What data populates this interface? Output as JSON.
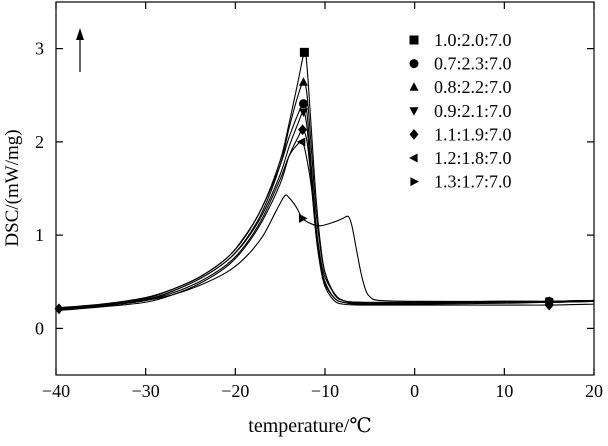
{
  "chart_data": {
    "type": "line",
    "xlabel": "temperature/℃",
    "ylabel": "DSC/(mW/mg)",
    "xlim": [
      -40,
      20
    ],
    "ylim": [
      -0.5,
      3.5
    ],
    "x_ticks": [
      -40,
      -30,
      -20,
      -10,
      0,
      10,
      20
    ],
    "x_tick_labels": [
      "−40",
      "−30",
      "−20",
      "−10",
      "0",
      "10",
      "20"
    ],
    "y_ticks": [
      0,
      1,
      2,
      3
    ],
    "y_tick_labels": [
      "0",
      "1",
      "2",
      "3"
    ],
    "grid": false,
    "legend_position": "top-right",
    "arrow": "exo-up",
    "series": [
      {
        "name": "1.0:2.0:7.0",
        "marker": "square",
        "points": [
          [
            -40,
            0.22
          ],
          [
            -35,
            0.25
          ],
          [
            -30,
            0.32
          ],
          [
            -27,
            0.42
          ],
          [
            -24,
            0.55
          ],
          [
            -21,
            0.75
          ],
          [
            -19,
            0.98
          ],
          [
            -17,
            1.3
          ],
          [
            -15,
            1.8
          ],
          [
            -14,
            2.2
          ],
          [
            -13,
            2.65
          ],
          [
            -12.3,
            2.96
          ],
          [
            -12.0,
            2.8
          ],
          [
            -11.5,
            2.1
          ],
          [
            -11,
            1.4
          ],
          [
            -10.5,
            0.9
          ],
          [
            -10,
            0.6
          ],
          [
            -9,
            0.38
          ],
          [
            -8,
            0.3
          ],
          [
            -6,
            0.27
          ],
          [
            0,
            0.27
          ],
          [
            10,
            0.28
          ],
          [
            15,
            0.28
          ],
          [
            20,
            0.29
          ]
        ]
      },
      {
        "name": "0.7:2.3:7.0",
        "marker": "circle",
        "points": [
          [
            -40,
            0.22
          ],
          [
            -35,
            0.26
          ],
          [
            -30,
            0.33
          ],
          [
            -27,
            0.42
          ],
          [
            -24,
            0.55
          ],
          [
            -21,
            0.75
          ],
          [
            -19,
            0.97
          ],
          [
            -17,
            1.3
          ],
          [
            -15,
            1.75
          ],
          [
            -14,
            2.05
          ],
          [
            -13,
            2.3
          ],
          [
            -12.4,
            2.41
          ],
          [
            -12.0,
            2.3
          ],
          [
            -11.5,
            1.7
          ],
          [
            -11,
            1.1
          ],
          [
            -10.5,
            0.75
          ],
          [
            -10,
            0.55
          ],
          [
            -9,
            0.38
          ],
          [
            -8,
            0.3
          ],
          [
            -6,
            0.28
          ],
          [
            0,
            0.28
          ],
          [
            10,
            0.29
          ],
          [
            15,
            0.29
          ],
          [
            20,
            0.3
          ]
        ]
      },
      {
        "name": "0.8:2.2:7.0",
        "marker": "triangle-up",
        "points": [
          [
            -40,
            0.21
          ],
          [
            -35,
            0.25
          ],
          [
            -30,
            0.31
          ],
          [
            -27,
            0.4
          ],
          [
            -24,
            0.53
          ],
          [
            -21,
            0.72
          ],
          [
            -19,
            0.93
          ],
          [
            -17,
            1.25
          ],
          [
            -15,
            1.75
          ],
          [
            -14,
            2.15
          ],
          [
            -13,
            2.5
          ],
          [
            -12.4,
            2.64
          ],
          [
            -12.0,
            2.5
          ],
          [
            -11.5,
            1.9
          ],
          [
            -11,
            1.25
          ],
          [
            -10.5,
            0.85
          ],
          [
            -10,
            0.6
          ],
          [
            -9,
            0.37
          ],
          [
            -8,
            0.3
          ],
          [
            -6,
            0.28
          ],
          [
            0,
            0.28
          ],
          [
            10,
            0.29
          ],
          [
            15,
            0.29
          ],
          [
            20,
            0.3
          ]
        ]
      },
      {
        "name": "0.9:2.1:7.0",
        "marker": "triangle-down",
        "points": [
          [
            -40,
            0.2
          ],
          [
            -35,
            0.24
          ],
          [
            -30,
            0.3
          ],
          [
            -27,
            0.4
          ],
          [
            -24,
            0.53
          ],
          [
            -21,
            0.72
          ],
          [
            -19,
            0.92
          ],
          [
            -17,
            1.22
          ],
          [
            -15,
            1.65
          ],
          [
            -14,
            1.95
          ],
          [
            -13,
            2.2
          ],
          [
            -12.4,
            2.32
          ],
          [
            -12.0,
            2.15
          ],
          [
            -11.5,
            1.6
          ],
          [
            -11,
            1.05
          ],
          [
            -10.5,
            0.7
          ],
          [
            -10,
            0.5
          ],
          [
            -9,
            0.33
          ],
          [
            -8,
            0.28
          ],
          [
            -6,
            0.26
          ],
          [
            0,
            0.26
          ],
          [
            10,
            0.27
          ],
          [
            15,
            0.28
          ],
          [
            20,
            0.29
          ]
        ]
      },
      {
        "name": "1.1:1.9:7.0",
        "marker": "diamond",
        "points": [
          [
            -40,
            0.19
          ],
          [
            -35,
            0.23
          ],
          [
            -30,
            0.28
          ],
          [
            -27,
            0.36
          ],
          [
            -24,
            0.48
          ],
          [
            -21,
            0.66
          ],
          [
            -19,
            0.86
          ],
          [
            -17,
            1.15
          ],
          [
            -15,
            1.55
          ],
          [
            -14,
            1.85
          ],
          [
            -13,
            2.05
          ],
          [
            -12.5,
            2.13
          ],
          [
            -12.0,
            2.0
          ],
          [
            -11.5,
            1.55
          ],
          [
            -11,
            1.0
          ],
          [
            -10.5,
            0.65
          ],
          [
            -10,
            0.45
          ],
          [
            -9,
            0.3
          ],
          [
            -8,
            0.26
          ],
          [
            -6,
            0.25
          ],
          [
            0,
            0.25
          ],
          [
            10,
            0.25
          ],
          [
            15,
            0.25
          ],
          [
            20,
            0.26
          ]
        ]
      },
      {
        "name": "1.2:1.8:7.0",
        "marker": "triangle-left",
        "points": [
          [
            -40,
            0.2
          ],
          [
            -35,
            0.24
          ],
          [
            -30,
            0.3
          ],
          [
            -27,
            0.38
          ],
          [
            -24,
            0.5
          ],
          [
            -21,
            0.68
          ],
          [
            -19,
            0.88
          ],
          [
            -17,
            1.18
          ],
          [
            -15,
            1.6
          ],
          [
            -14,
            1.85
          ],
          [
            -13,
            1.98
          ],
          [
            -12.6,
            2.0
          ],
          [
            -12.2,
            1.9
          ],
          [
            -11.5,
            1.5
          ],
          [
            -11,
            1.0
          ],
          [
            -10.5,
            0.68
          ],
          [
            -10,
            0.48
          ],
          [
            -9,
            0.33
          ],
          [
            -8,
            0.28
          ],
          [
            -6,
            0.27
          ],
          [
            0,
            0.27
          ],
          [
            10,
            0.28
          ],
          [
            15,
            0.28
          ],
          [
            20,
            0.29
          ]
        ]
      },
      {
        "name": "1.3:1.7:7.0",
        "marker": "triangle-right",
        "points": [
          [
            -40,
            0.21
          ],
          [
            -35,
            0.24
          ],
          [
            -30,
            0.3
          ],
          [
            -27,
            0.36
          ],
          [
            -24,
            0.46
          ],
          [
            -21,
            0.6
          ],
          [
            -19,
            0.75
          ],
          [
            -17,
            0.98
          ],
          [
            -15.5,
            1.25
          ],
          [
            -14.5,
            1.42
          ],
          [
            -14,
            1.4
          ],
          [
            -13.2,
            1.3
          ],
          [
            -12.5,
            1.18
          ],
          [
            -11.5,
            1.12
          ],
          [
            -10.5,
            1.1
          ],
          [
            -9,
            1.14
          ],
          [
            -8,
            1.18
          ],
          [
            -7.4,
            1.2
          ],
          [
            -7,
            1.1
          ],
          [
            -6.5,
            0.85
          ],
          [
            -6,
            0.6
          ],
          [
            -5.5,
            0.42
          ],
          [
            -5,
            0.34
          ],
          [
            -4,
            0.3
          ],
          [
            0,
            0.29
          ],
          [
            10,
            0.29
          ],
          [
            15,
            0.29
          ],
          [
            20,
            0.3
          ]
        ]
      }
    ],
    "marker_positions": [
      {
        "series": 0,
        "x": [
          -12.3
        ]
      },
      {
        "series": 1,
        "x": [
          -12.4,
          15
        ]
      },
      {
        "series": 2,
        "x": [
          -12.4,
          15
        ]
      },
      {
        "series": 3,
        "x": [
          -12.4,
          15
        ]
      },
      {
        "series": 4,
        "x": [
          -12.5,
          15
        ]
      },
      {
        "series": 5,
        "x": [
          -12.6,
          15
        ]
      },
      {
        "series": 6,
        "x": [
          -12.5,
          15
        ]
      }
    ]
  }
}
